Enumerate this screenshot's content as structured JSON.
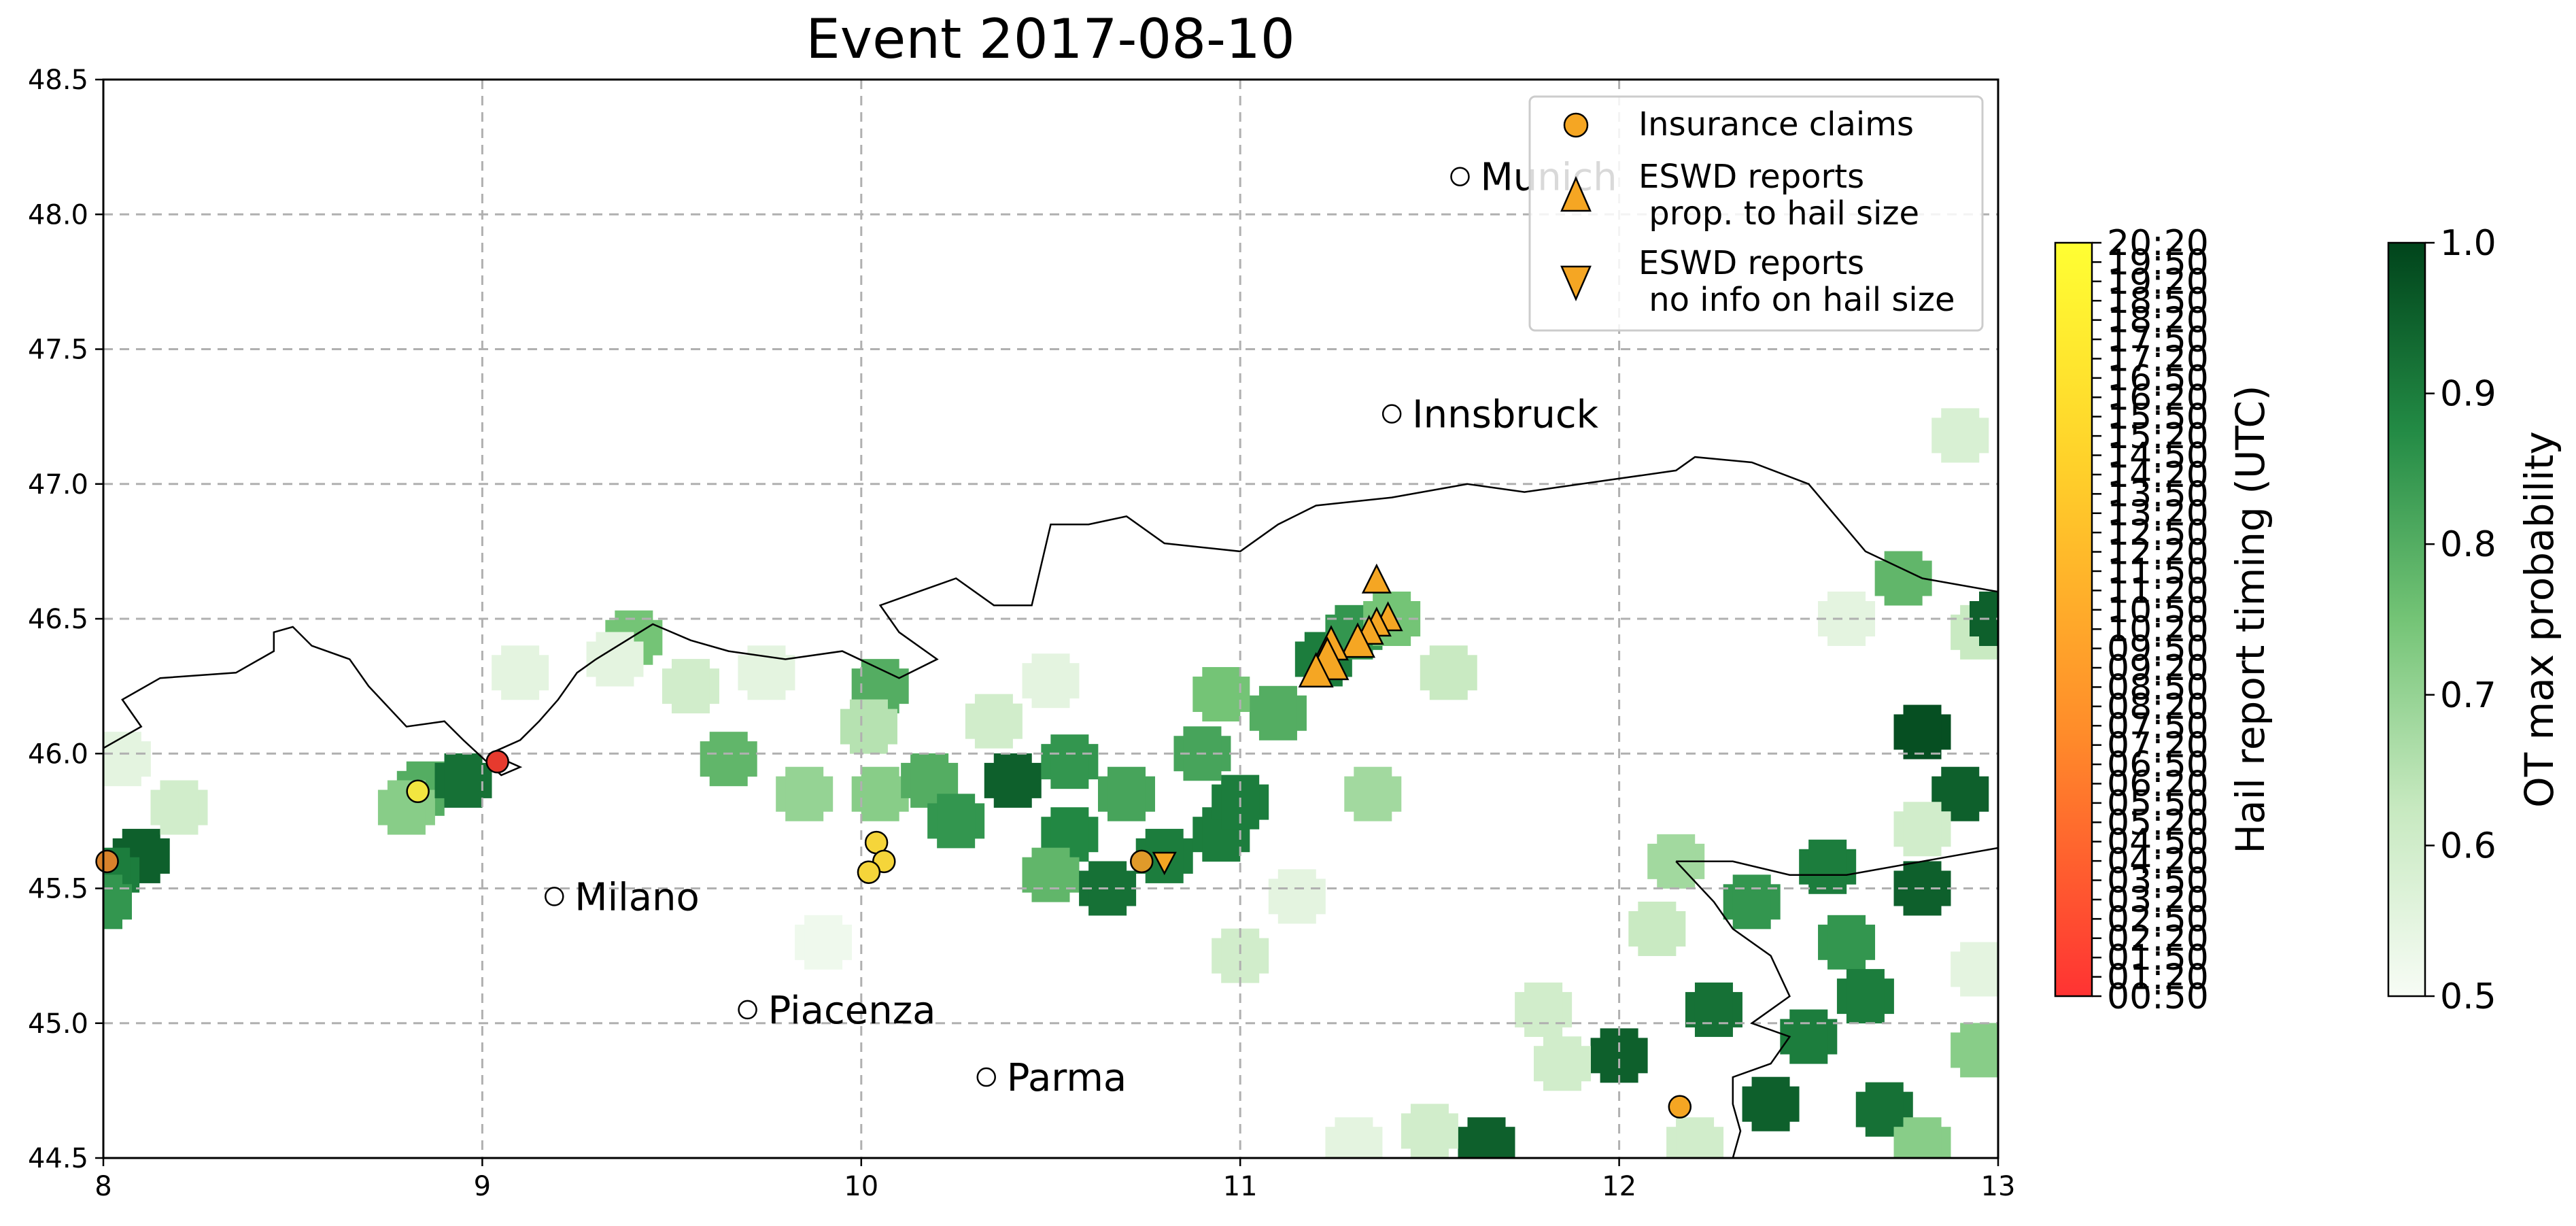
{
  "title": "Event 2017-08-10",
  "map": {
    "lon_range": [
      8,
      13
    ],
    "lat_range": [
      44.5,
      48.5
    ],
    "x_ticks": [
      "8",
      "9",
      "10",
      "11",
      "12",
      "13"
    ],
    "y_ticks": [
      "44.5",
      "45.0",
      "45.5",
      "46.0",
      "46.5",
      "47.0",
      "47.5",
      "48.0",
      "48.5"
    ],
    "grid": "dashed"
  },
  "cities": [
    {
      "name": "Munich",
      "lon": 11.58,
      "lat": 48.14
    },
    {
      "name": "Innsbruck",
      "lon": 11.4,
      "lat": 47.26
    },
    {
      "name": "Milano",
      "lon": 9.19,
      "lat": 45.47
    },
    {
      "name": "Piacenza",
      "lon": 9.7,
      "lat": 45.05
    },
    {
      "name": "Parma",
      "lon": 10.33,
      "lat": 44.8
    }
  ],
  "legend": {
    "claims": "Insurance claims",
    "eswd_size_l1": "ESWD reports",
    "eswd_size_l2": " prop. to hail size",
    "eswd_noinfo_l1": "ESWD reports",
    "eswd_noinfo_l2": " no info on hail size",
    "position": "upper-right"
  },
  "timing_colorbar": {
    "label": "Hail report timing (UTC)",
    "ticks": [
      "00:50",
      "01:20",
      "01:50",
      "02:20",
      "02:50",
      "03:20",
      "03:50",
      "04:20",
      "04:50",
      "05:20",
      "05:50",
      "06:20",
      "06:50",
      "07:20",
      "07:50",
      "08:20",
      "08:50",
      "09:20",
      "09:50",
      "10:20",
      "10:50",
      "11:20",
      "11:50",
      "12:20",
      "12:50",
      "13:20",
      "13:50",
      "14:20",
      "14:50",
      "15:20",
      "15:50",
      "16:20",
      "16:50",
      "17:20",
      "17:50",
      "18:20",
      "18:50",
      "19:20",
      "19:50",
      "20:20"
    ],
    "colors": [
      "#ff3333",
      "#ff8c2a",
      "#ffd02a",
      "#ffff33"
    ]
  },
  "prob_colorbar": {
    "label": "OT max probability",
    "ticks": [
      "0.5",
      "0.6",
      "0.7",
      "0.8",
      "0.9",
      "1.0"
    ],
    "colors": [
      "#f7fcf5",
      "#c7e9c0",
      "#74c476",
      "#238b45",
      "#00441b"
    ]
  },
  "claims": [
    {
      "lon": 8.01,
      "lat": 45.6,
      "color": "#d9822b"
    },
    {
      "lon": 8.83,
      "lat": 45.86,
      "color": "#f2e640"
    },
    {
      "lon": 9.04,
      "lat": 45.97,
      "color": "#e63a2e"
    },
    {
      "lon": 10.04,
      "lat": 45.67,
      "color": "#f5d53a"
    },
    {
      "lon": 10.06,
      "lat": 45.6,
      "color": "#f5d53a"
    },
    {
      "lon": 10.02,
      "lat": 45.56,
      "color": "#f5d53a"
    },
    {
      "lon": 10.74,
      "lat": 45.6,
      "color": "#e09a2a"
    },
    {
      "lon": 12.16,
      "lat": 44.69,
      "color": "#f5a623"
    }
  ],
  "eswd_sized": [
    {
      "lon": 11.36,
      "lat": 46.64,
      "size": 1.0
    },
    {
      "lon": 11.39,
      "lat": 46.5,
      "size": 1.0
    },
    {
      "lon": 11.36,
      "lat": 46.48,
      "size": 1.0
    },
    {
      "lon": 11.34,
      "lat": 46.45,
      "size": 1.0
    },
    {
      "lon": 11.31,
      "lat": 46.41,
      "size": 1.2
    },
    {
      "lon": 11.24,
      "lat": 46.4,
      "size": 1.2
    },
    {
      "lon": 11.23,
      "lat": 46.34,
      "size": 1.5
    },
    {
      "lon": 11.2,
      "lat": 46.3,
      "size": 1.2
    }
  ],
  "eswd_noinfo": [
    {
      "lon": 10.8,
      "lat": 45.6
    }
  ],
  "ot_cells": [
    {
      "lon": 8.1,
      "lat": 45.62,
      "p": 0.95
    },
    {
      "lon": 8.02,
      "lat": 45.55,
      "p": 0.9
    },
    {
      "lon": 8.0,
      "lat": 45.45,
      "p": 0.85
    },
    {
      "lon": 8.85,
      "lat": 45.87,
      "p": 0.8
    },
    {
      "lon": 8.8,
      "lat": 45.8,
      "p": 0.72
    },
    {
      "lon": 8.95,
      "lat": 45.9,
      "p": 0.92
    },
    {
      "lon": 9.4,
      "lat": 46.43,
      "p": 0.75
    },
    {
      "lon": 9.1,
      "lat": 46.3,
      "p": 0.55
    },
    {
      "lon": 9.65,
      "lat": 45.98,
      "p": 0.78
    },
    {
      "lon": 9.85,
      "lat": 45.85,
      "p": 0.7
    },
    {
      "lon": 10.05,
      "lat": 45.85,
      "p": 0.72
    },
    {
      "lon": 10.18,
      "lat": 45.9,
      "p": 0.8
    },
    {
      "lon": 10.05,
      "lat": 46.25,
      "p": 0.8
    },
    {
      "lon": 10.02,
      "lat": 46.1,
      "p": 0.65
    },
    {
      "lon": 10.25,
      "lat": 45.75,
      "p": 0.85
    },
    {
      "lon": 10.4,
      "lat": 45.9,
      "p": 0.95
    },
    {
      "lon": 10.55,
      "lat": 45.97,
      "p": 0.85
    },
    {
      "lon": 10.7,
      "lat": 45.85,
      "p": 0.82
    },
    {
      "lon": 10.55,
      "lat": 45.7,
      "p": 0.88
    },
    {
      "lon": 10.5,
      "lat": 45.55,
      "p": 0.78
    },
    {
      "lon": 10.65,
      "lat": 45.5,
      "p": 0.92
    },
    {
      "lon": 10.8,
      "lat": 45.62,
      "p": 0.9
    },
    {
      "lon": 10.95,
      "lat": 45.7,
      "p": 0.9
    },
    {
      "lon": 11.0,
      "lat": 45.82,
      "p": 0.9
    },
    {
      "lon": 10.9,
      "lat": 46.0,
      "p": 0.82
    },
    {
      "lon": 11.1,
      "lat": 46.15,
      "p": 0.8
    },
    {
      "lon": 11.22,
      "lat": 46.35,
      "p": 0.9
    },
    {
      "lon": 11.3,
      "lat": 46.45,
      "p": 0.85
    },
    {
      "lon": 11.4,
      "lat": 46.5,
      "p": 0.75
    },
    {
      "lon": 10.95,
      "lat": 46.22,
      "p": 0.75
    },
    {
      "lon": 11.35,
      "lat": 45.85,
      "p": 0.68
    },
    {
      "lon": 11.55,
      "lat": 46.3,
      "p": 0.62
    },
    {
      "lon": 10.5,
      "lat": 46.27,
      "p": 0.55
    },
    {
      "lon": 9.75,
      "lat": 46.3,
      "p": 0.55
    },
    {
      "lon": 10.35,
      "lat": 46.12,
      "p": 0.6
    },
    {
      "lon": 11.15,
      "lat": 45.47,
      "p": 0.55
    },
    {
      "lon": 11.0,
      "lat": 45.25,
      "p": 0.6
    },
    {
      "lon": 12.15,
      "lat": 45.6,
      "p": 0.68
    },
    {
      "lon": 12.1,
      "lat": 45.35,
      "p": 0.62
    },
    {
      "lon": 12.35,
      "lat": 45.45,
      "p": 0.85
    },
    {
      "lon": 12.55,
      "lat": 45.58,
      "p": 0.9
    },
    {
      "lon": 12.8,
      "lat": 45.5,
      "p": 0.95
    },
    {
      "lon": 12.6,
      "lat": 45.3,
      "p": 0.85
    },
    {
      "lon": 12.9,
      "lat": 45.85,
      "p": 0.95
    },
    {
      "lon": 12.8,
      "lat": 46.08,
      "p": 0.98
    },
    {
      "lon": 12.8,
      "lat": 45.72,
      "p": 0.6
    },
    {
      "lon": 12.25,
      "lat": 45.05,
      "p": 0.92
    },
    {
      "lon": 12.5,
      "lat": 44.95,
      "p": 0.9
    },
    {
      "lon": 12.65,
      "lat": 45.1,
      "p": 0.9
    },
    {
      "lon": 12.0,
      "lat": 44.88,
      "p": 0.95
    },
    {
      "lon": 12.4,
      "lat": 44.7,
      "p": 0.95
    },
    {
      "lon": 12.7,
      "lat": 44.68,
      "p": 0.92
    },
    {
      "lon": 12.95,
      "lat": 44.9,
      "p": 0.72
    },
    {
      "lon": 12.95,
      "lat": 45.2,
      "p": 0.55
    },
    {
      "lon": 12.8,
      "lat": 44.55,
      "p": 0.72
    },
    {
      "lon": 11.65,
      "lat": 44.55,
      "p": 0.95
    },
    {
      "lon": 11.85,
      "lat": 44.85,
      "p": 0.6
    },
    {
      "lon": 12.2,
      "lat": 44.55,
      "p": 0.6
    },
    {
      "lon": 12.9,
      "lat": 47.18,
      "p": 0.58
    },
    {
      "lon": 12.75,
      "lat": 46.65,
      "p": 0.78
    },
    {
      "lon": 12.95,
      "lat": 46.45,
      "p": 0.62
    },
    {
      "lon": 12.6,
      "lat": 46.5,
      "p": 0.55
    },
    {
      "lon": 13.0,
      "lat": 46.5,
      "p": 0.95
    },
    {
      "lon": 9.35,
      "lat": 46.35,
      "p": 0.55
    },
    {
      "lon": 9.55,
      "lat": 46.25,
      "p": 0.6
    },
    {
      "lon": 8.05,
      "lat": 45.98,
      "p": 0.55
    },
    {
      "lon": 8.2,
      "lat": 45.8,
      "p": 0.6
    },
    {
      "lon": 9.9,
      "lat": 45.3,
      "p": 0.52
    },
    {
      "lon": 11.8,
      "lat": 45.05,
      "p": 0.6
    },
    {
      "lon": 11.3,
      "lat": 44.55,
      "p": 0.55
    },
    {
      "lon": 11.5,
      "lat": 44.6,
      "p": 0.6
    }
  ],
  "coastline": [
    [
      12.15,
      45.6
    ],
    [
      12.3,
      45.6
    ],
    [
      12.45,
      45.55
    ],
    [
      12.6,
      45.55
    ],
    [
      12.8,
      45.6
    ],
    [
      13.0,
      45.65
    ]
  ],
  "coastline2": [
    [
      12.15,
      45.6
    ],
    [
      12.25,
      45.45
    ],
    [
      12.3,
      45.35
    ],
    [
      12.4,
      45.25
    ],
    [
      12.45,
      45.1
    ],
    [
      12.35,
      45.0
    ],
    [
      12.45,
      44.95
    ],
    [
      12.4,
      44.85
    ],
    [
      12.3,
      44.8
    ],
    [
      12.3,
      44.7
    ],
    [
      12.32,
      44.6
    ],
    [
      12.3,
      44.5
    ]
  ],
  "border": [
    [
      8.0,
      46.02
    ],
    [
      8.1,
      46.1
    ],
    [
      8.05,
      46.2
    ],
    [
      8.15,
      46.28
    ],
    [
      8.35,
      46.3
    ],
    [
      8.45,
      46.38
    ],
    [
      8.45,
      46.45
    ],
    [
      8.5,
      46.47
    ],
    [
      8.55,
      46.4
    ],
    [
      8.65,
      46.35
    ],
    [
      8.7,
      46.25
    ],
    [
      8.8,
      46.1
    ],
    [
      8.9,
      46.12
    ],
    [
      8.95,
      46.05
    ],
    [
      9.05,
      45.92
    ],
    [
      9.1,
      45.95
    ],
    [
      9.02,
      46.0
    ],
    [
      9.1,
      46.05
    ],
    [
      9.15,
      46.12
    ],
    [
      9.2,
      46.2
    ],
    [
      9.25,
      46.3
    ],
    [
      9.3,
      46.35
    ],
    [
      9.45,
      46.48
    ],
    [
      9.55,
      46.42
    ],
    [
      9.65,
      46.38
    ],
    [
      9.8,
      46.35
    ],
    [
      9.95,
      46.38
    ],
    [
      10.1,
      46.28
    ],
    [
      10.2,
      46.35
    ],
    [
      10.1,
      46.45
    ],
    [
      10.05,
      46.55
    ],
    [
      10.15,
      46.6
    ],
    [
      10.25,
      46.65
    ],
    [
      10.35,
      46.55
    ],
    [
      10.45,
      46.55
    ],
    [
      10.5,
      46.85
    ],
    [
      10.6,
      46.85
    ],
    [
      10.7,
      46.88
    ],
    [
      10.8,
      46.78
    ],
    [
      11.0,
      46.75
    ],
    [
      11.1,
      46.85
    ],
    [
      11.2,
      46.92
    ],
    [
      11.4,
      46.95
    ],
    [
      11.6,
      47.0
    ],
    [
      11.75,
      46.97
    ],
    [
      12.0,
      47.02
    ],
    [
      12.15,
      47.05
    ],
    [
      12.2,
      47.1
    ],
    [
      12.35,
      47.08
    ],
    [
      12.5,
      47.0
    ],
    [
      12.65,
      46.75
    ],
    [
      12.8,
      46.65
    ],
    [
      13.0,
      46.6
    ]
  ]
}
